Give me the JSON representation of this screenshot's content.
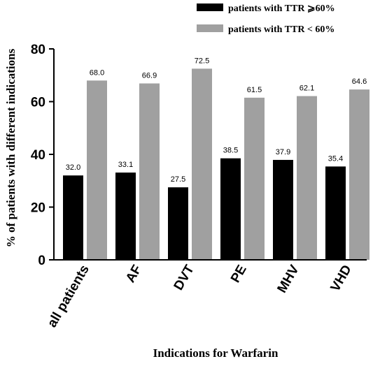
{
  "chart_data": {
    "type": "bar",
    "title": "",
    "xlabel": "Indications for Warfarin",
    "ylabel": "% of patients with different indications",
    "categories": [
      "all patients",
      "AF",
      "DVT",
      "PE",
      "MHV",
      "VHD"
    ],
    "series": [
      {
        "name": "patients with TTR ⩾60%",
        "values": [
          32.0,
          33.1,
          27.5,
          38.5,
          37.9,
          35.4
        ],
        "labels": [
          "32.0",
          "33.1",
          "27.5",
          "38.5",
          "37.9",
          "35.4"
        ],
        "color": "#000000"
      },
      {
        "name": "patients with TTR < 60%",
        "values": [
          68.0,
          66.9,
          72.5,
          61.5,
          62.1,
          64.6
        ],
        "labels": [
          "68.0",
          "66.9",
          "72.5",
          "61.5",
          "62.1",
          "64.6"
        ],
        "color": "#a0a0a0"
      }
    ],
    "ylim": [
      0,
      80
    ],
    "yticks": [
      "0",
      "20",
      "40",
      "60",
      "80"
    ],
    "grid": false,
    "legend_position": "top-right"
  }
}
